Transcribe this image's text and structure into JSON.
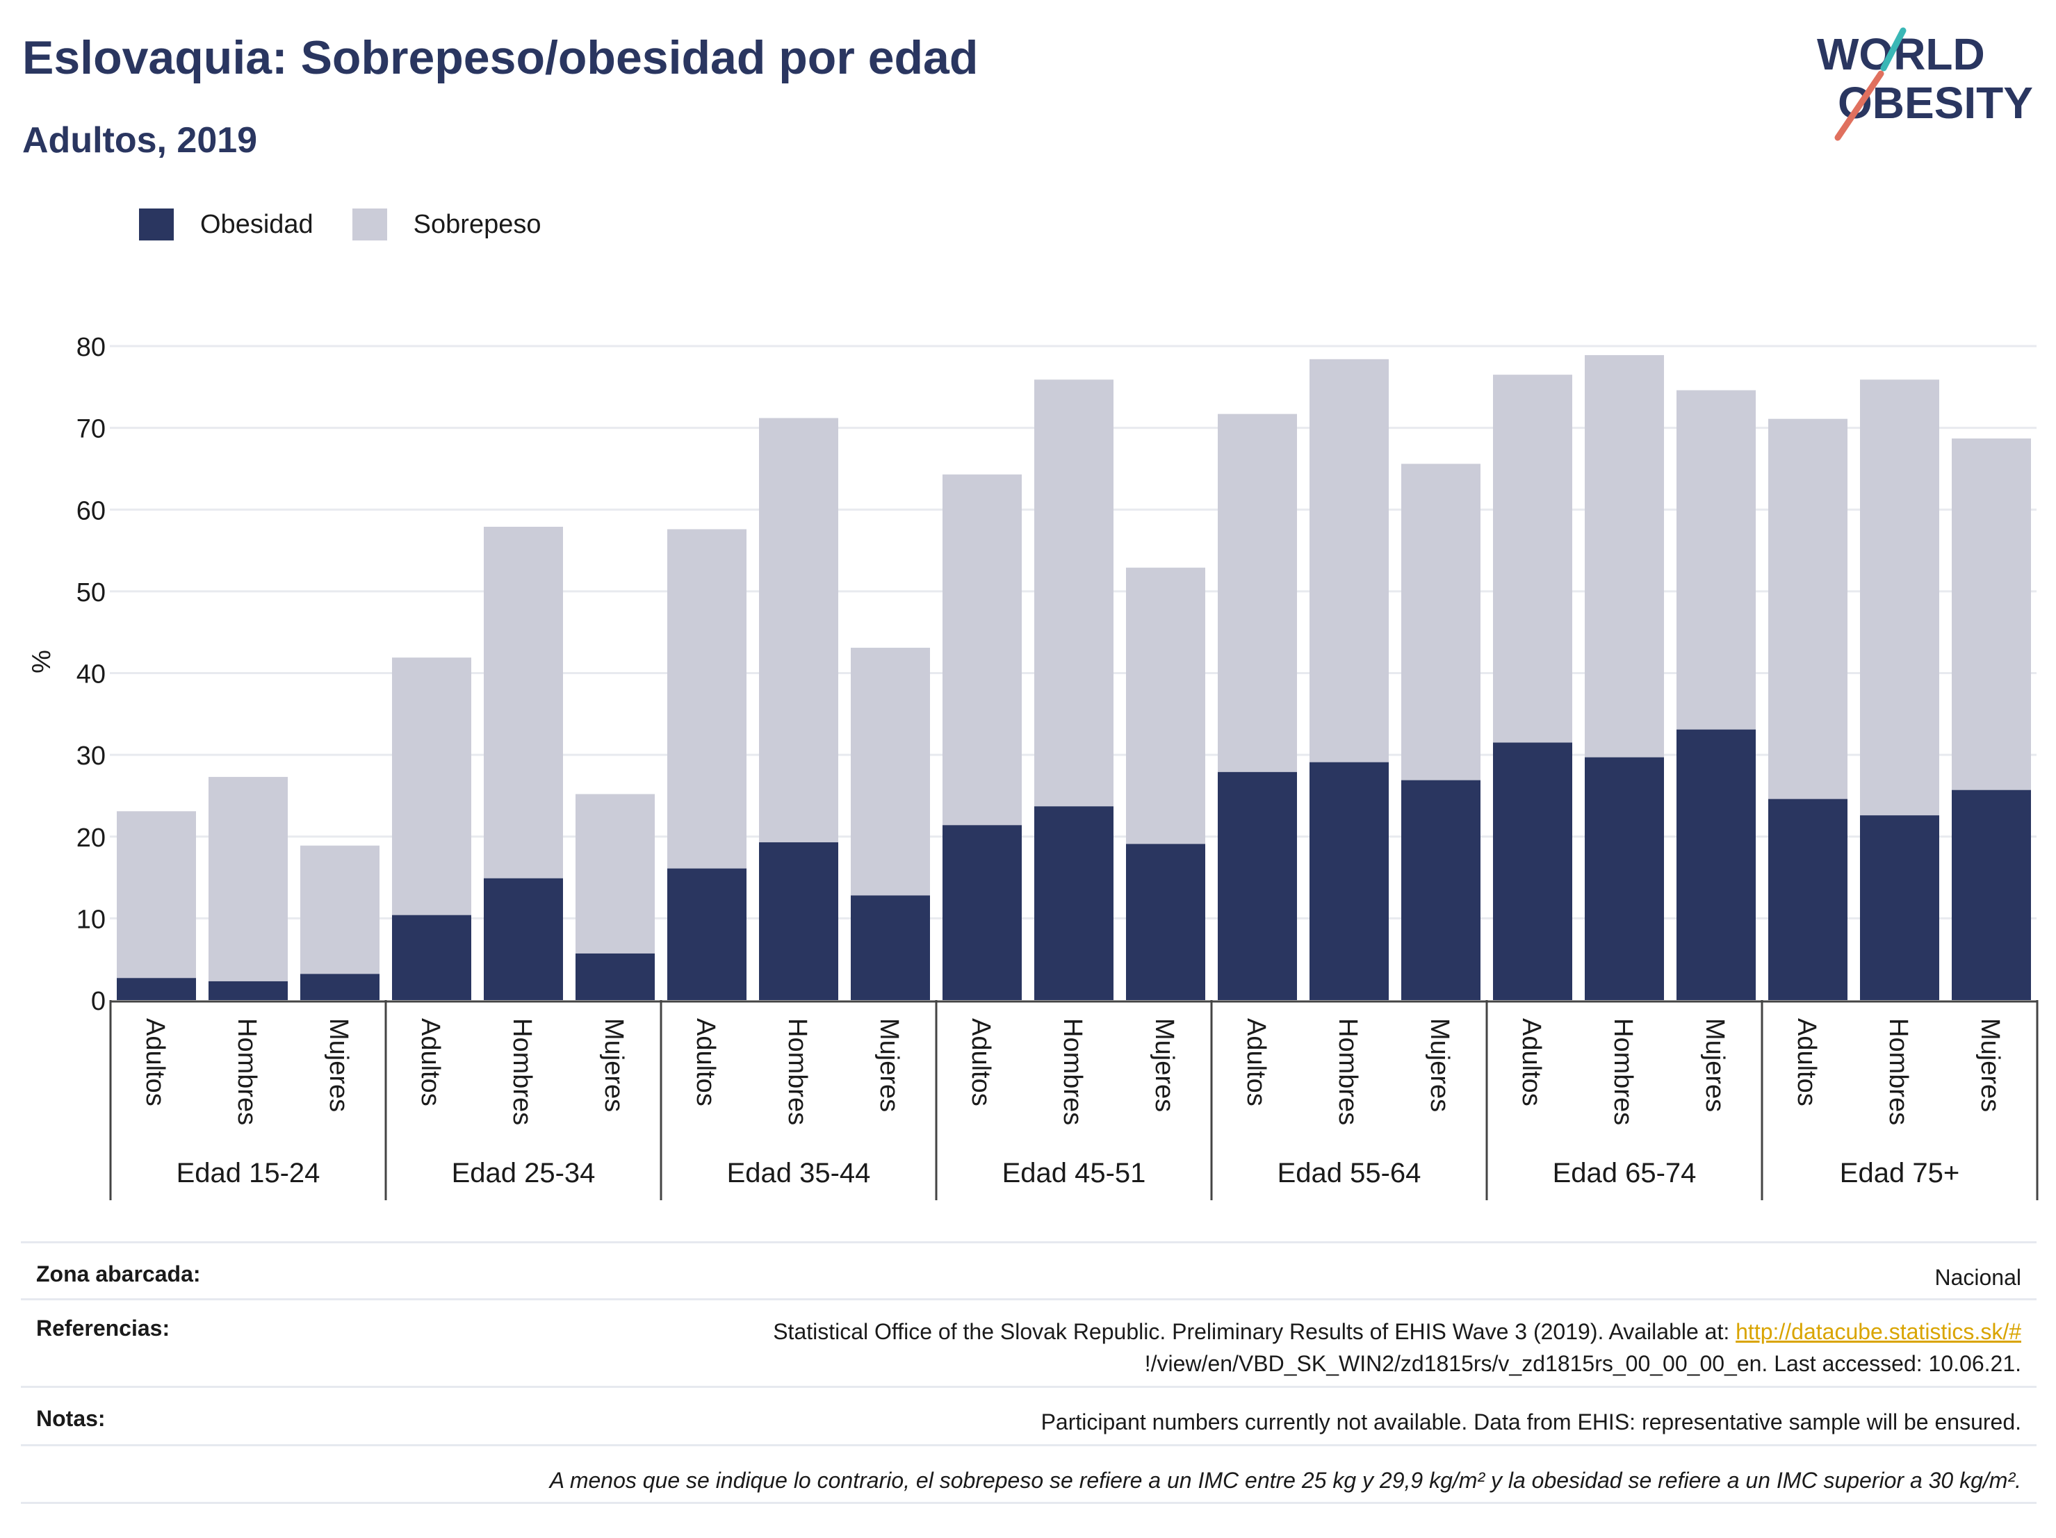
{
  "title": "Eslovaquia: Sobrepeso/obesidad por edad",
  "subtitle": "Adultos, 2019",
  "logo": {
    "line1": "WORLD",
    "line2": "OBESITY"
  },
  "colors": {
    "obesidad": "#2a3660",
    "sobrepeso": "#cbccd8",
    "text": "#2a3660",
    "grid": "#e8eaef"
  },
  "legend": [
    {
      "label": "Obesidad",
      "color": "#2a3660"
    },
    {
      "label": "Sobrepeso",
      "color": "#cbccd8"
    }
  ],
  "chart_data": {
    "type": "bar",
    "stacked": true,
    "ylabel": "%",
    "ylim": [
      0,
      80
    ],
    "yticks": [
      0,
      10,
      20,
      30,
      40,
      50,
      60,
      70,
      80
    ],
    "grid": true,
    "legend_position": "top-left",
    "groups": [
      "Edad 15-24",
      "Edad 25-34",
      "Edad 35-44",
      "Edad 45-51",
      "Edad 55-64",
      "Edad 65-74",
      "Edad 75+"
    ],
    "subcategories": [
      "Adultos",
      "Hombres",
      "Mujeres"
    ],
    "series": [
      {
        "name": "Obesidad",
        "values": [
          2.7,
          2.3,
          3.2,
          10.4,
          14.9,
          5.7,
          16.1,
          19.3,
          12.8,
          21.4,
          23.7,
          19.1,
          27.9,
          29.1,
          26.9,
          31.5,
          29.7,
          33.1,
          24.6,
          22.6,
          25.7
        ]
      },
      {
        "name": "Sobrepeso",
        "values": [
          20.4,
          25.0,
          15.7,
          31.5,
          43.0,
          19.5,
          41.5,
          51.9,
          30.3,
          42.9,
          52.2,
          33.8,
          43.8,
          49.3,
          38.7,
          45.0,
          49.2,
          41.5,
          46.5,
          53.3,
          43.0
        ]
      }
    ]
  },
  "info": {
    "zona_label": "Zona abarcada:",
    "zona_value": "Nacional",
    "ref_label": "Referencias:",
    "ref_text1": "Statistical Office of the Slovak Republic. Preliminary Results of EHIS Wave 3 (2019). Available at: ",
    "ref_link": "http://datacube.statistics.sk/#",
    "ref_text2": "!/view/en/VBD_SK_WIN2/zd1815rs/v_zd1815rs_00_00_00_en. Last accessed: 10.06.21.",
    "notas_label": "Notas:",
    "notas_value": "Participant numbers currently not available. Data from EHIS: representative sample will be ensured.",
    "disclaimer": "A menos que se indique lo contrario, el sobrepeso se refiere a un IMC entre 25 kg y 29,9 kg/m² y la obesidad se refiere a un IMC superior a 30 kg/m²."
  }
}
